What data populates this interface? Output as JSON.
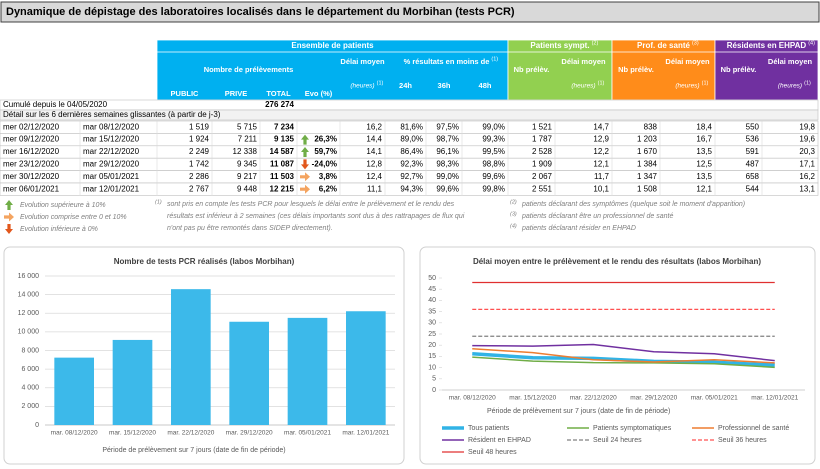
{
  "header": {
    "title": "Dynamique de dépistage des laboratoires localisés dans le département du Morbihan (tests PCR)"
  },
  "table": {
    "groups": [
      {
        "label": "Ensemble de patients",
        "color": "#00b0f0"
      },
      {
        "label": "Patients sympt.",
        "note": "(2)",
        "color": "#92d050"
      },
      {
        "label": "Prof. de santé",
        "note": "(3)",
        "color": "#ff8c1a"
      },
      {
        "label": "Résidents en EHPAD",
        "note": "(4)",
        "color": "#7030a0"
      }
    ],
    "headers": [
      {
        "label": "Nombre de prélèvements"
      },
      {
        "label": "PUBLIC"
      },
      {
        "label": "PRIVE"
      },
      {
        "label": "TOTAL"
      },
      {
        "label": "Evo (%)"
      },
      {
        "label": "Délai moyen",
        "unit": "(heures)",
        "note": "(1)"
      },
      {
        "label": "% résultats en moins de",
        "note": "(1)"
      },
      {
        "label": "24h"
      },
      {
        "label": "36h"
      },
      {
        "label": "48h"
      },
      {
        "label": "Nb prélèv."
      },
      {
        "label": "Délai moyen",
        "unit": "(heures)",
        "note": "(1)"
      },
      {
        "label": "Nb prélèv."
      },
      {
        "label": "Délai moyen",
        "unit": "(heures)",
        "note": "(1)"
      },
      {
        "label": "Nb prélèv."
      },
      {
        "label": "Délai moyen",
        "unit": "(heures)",
        "note": "(1)"
      }
    ],
    "cumul": {
      "label": "Cumulé depuis le 04/05/2020",
      "total": "276 274"
    },
    "detail_label": "Détail sur les 6 dernières semaines glissantes (à partir de j-3)",
    "trend_colors": {
      "up": "#70ad47",
      "down": "#e2571c",
      "flat": "#f4a460"
    },
    "trends": [
      null,
      "up",
      "up",
      "down",
      "flat",
      "flat"
    ],
    "rows": [
      [
        "mer 02/12/2020",
        "mar 08/12/2020",
        "1 519",
        "5 715",
        "7 234",
        null,
        "16,2",
        "81,6%",
        "97,5%",
        "99,0%",
        "1 521",
        "14,7",
        "838",
        "18,4",
        "550",
        "19,8"
      ],
      [
        "mer 09/12/2020",
        "mar 15/12/2020",
        "1 924",
        "7 211",
        "9 135",
        "26,3%",
        "14,4",
        "89,0%",
        "98,7%",
        "99,3%",
        "1 787",
        "12,9",
        "1 203",
        "16,7",
        "536",
        "19,6"
      ],
      [
        "mer 16/12/2020",
        "mar 22/12/2020",
        "2 249",
        "12 338",
        "14 587",
        "59,7%",
        "14,1",
        "86,4%",
        "96,1%",
        "99,5%",
        "2 528",
        "12,2",
        "1 670",
        "13,5",
        "591",
        "20,3"
      ],
      [
        "mer 23/12/2020",
        "mar 29/12/2020",
        "1 742",
        "9 345",
        "11 087",
        "-24,0%",
        "12,8",
        "92,3%",
        "98,3%",
        "98,8%",
        "1 909",
        "12,1",
        "1 384",
        "12,5",
        "487",
        "17,1"
      ],
      [
        "mer 30/12/2020",
        "mar 05/01/2021",
        "2 286",
        "9 217",
        "11 503",
        "3,8%",
        "12,4",
        "92,7%",
        "99,0%",
        "99,6%",
        "2 067",
        "11,7",
        "1 347",
        "13,5",
        "658",
        "16,2"
      ],
      [
        "mer 06/01/2021",
        "mar 12/01/2021",
        "2 767",
        "9 448",
        "12 215",
        "6,2%",
        "11,1",
        "94,3%",
        "99,6%",
        "99,8%",
        "2 551",
        "10,1",
        "1 508",
        "12,1",
        "544",
        "13,1"
      ]
    ]
  },
  "legend_notes": [
    {
      "trend": "up",
      "text": "Evolution supérieure à 10%"
    },
    {
      "trend": "flat",
      "text": "Evolution comprise entre 0 et 10%"
    },
    {
      "trend": "down",
      "text": "Evolution inférieure à 0%"
    }
  ],
  "footnotes": [
    {
      "mark": "(1)",
      "lines": [
        "sont pris en compte les tests PCR pour lesquels le délai entre le prélèvement et le rendu des",
        "résultats est inférieur à 2 semaines (ces délais importants sont dus à des rattrapages de flux qui",
        "n'ont pas pu être remontés dans SIDEP directement)."
      ]
    },
    {
      "mark": "(2)",
      "lines": [
        "patients déclarant des symptômes (quelque soit le moment d'apparition)"
      ]
    },
    {
      "mark": "(3)",
      "lines": [
        "patients déclarant être un professionnel de santé"
      ]
    },
    {
      "mark": "(4)",
      "lines": [
        "patients déclarant résider en EHPAD"
      ]
    }
  ],
  "chart_data": [
    {
      "type": "bar",
      "title": "Nombre de tests PCR réalisés (labos Morbihan)",
      "x_label": "Période de prélèvement sur 7 jours (date de fin de période)",
      "categories": [
        "mar. 08/12/2020",
        "mar. 15/12/2020",
        "mar. 22/12/2020",
        "mar. 29/12/2020",
        "mar. 05/01/2021",
        "mar. 12/01/2021"
      ],
      "values": [
        7234,
        9135,
        14587,
        11087,
        11503,
        12215
      ],
      "color": "#3cb9ea",
      "ylim": [
        0,
        16000
      ],
      "yticks": [
        0,
        {
          "value": 2000,
          "label": "2 000"
        },
        {
          "value": 4000,
          "label": "4 000"
        },
        {
          "value": 6000,
          "label": "6 000"
        },
        {
          "value": 8000,
          "label": "8 000"
        },
        {
          "value": 10000,
          "label": "10 000"
        },
        {
          "value": 12000,
          "label": "12 000"
        },
        {
          "value": 14000,
          "label": "14 000"
        },
        {
          "value": 16000,
          "label": "16 000"
        }
      ],
      "grid": true
    },
    {
      "type": "line",
      "title": "Délai moyen entre le prélèvement et le rendu des résultats (labos Morbihan)",
      "x_label": "Période de prélèvement sur 7 jours (date de fin de période)",
      "categories": [
        "mar. 08/12/2020",
        "mar. 15/12/2020",
        "mar. 22/12/2020",
        "mar. 29/12/2020",
        "mar. 05/01/2021",
        "mar. 12/01/2021"
      ],
      "series": [
        {
          "name": "Tous patients",
          "color": "#31b3e6",
          "width": 3.5,
          "values": [
            16.2,
            14.4,
            14.1,
            12.8,
            12.4,
            11.1
          ]
        },
        {
          "name": "Patients symptomatiques",
          "color": "#70ad47",
          "width": 1.5,
          "values": [
            14.7,
            12.9,
            12.2,
            12.1,
            11.7,
            10.1
          ]
        },
        {
          "name": "Professionnel de santé",
          "color": "#ed7d31",
          "width": 1.5,
          "values": [
            18.4,
            16.7,
            13.5,
            12.5,
            13.5,
            12.1
          ]
        },
        {
          "name": "Résident en EHPAD",
          "color": "#7030a0",
          "width": 1.5,
          "values": [
            19.8,
            19.6,
            20.3,
            17.1,
            16.2,
            13.1
          ]
        },
        {
          "name": "Seuil 24 heures",
          "color": "#808080",
          "width": 1.2,
          "dash": true,
          "values": [
            24,
            24,
            24,
            24,
            24,
            24
          ]
        },
        {
          "name": "Seuil 36 heures",
          "color": "#ff5050",
          "width": 1.2,
          "dash": true,
          "values": [
            36,
            36,
            36,
            36,
            36,
            36
          ]
        },
        {
          "name": "Seuil 48 heures",
          "color": "#e03030",
          "width": 1.2,
          "values": [
            48,
            48,
            48,
            48,
            48,
            48
          ]
        }
      ],
      "ylim": [
        0,
        50
      ],
      "yticks": [
        0,
        5,
        10,
        15,
        20,
        25,
        30,
        35,
        40,
        45,
        50
      ],
      "grid": false,
      "legend": "bottom"
    }
  ]
}
